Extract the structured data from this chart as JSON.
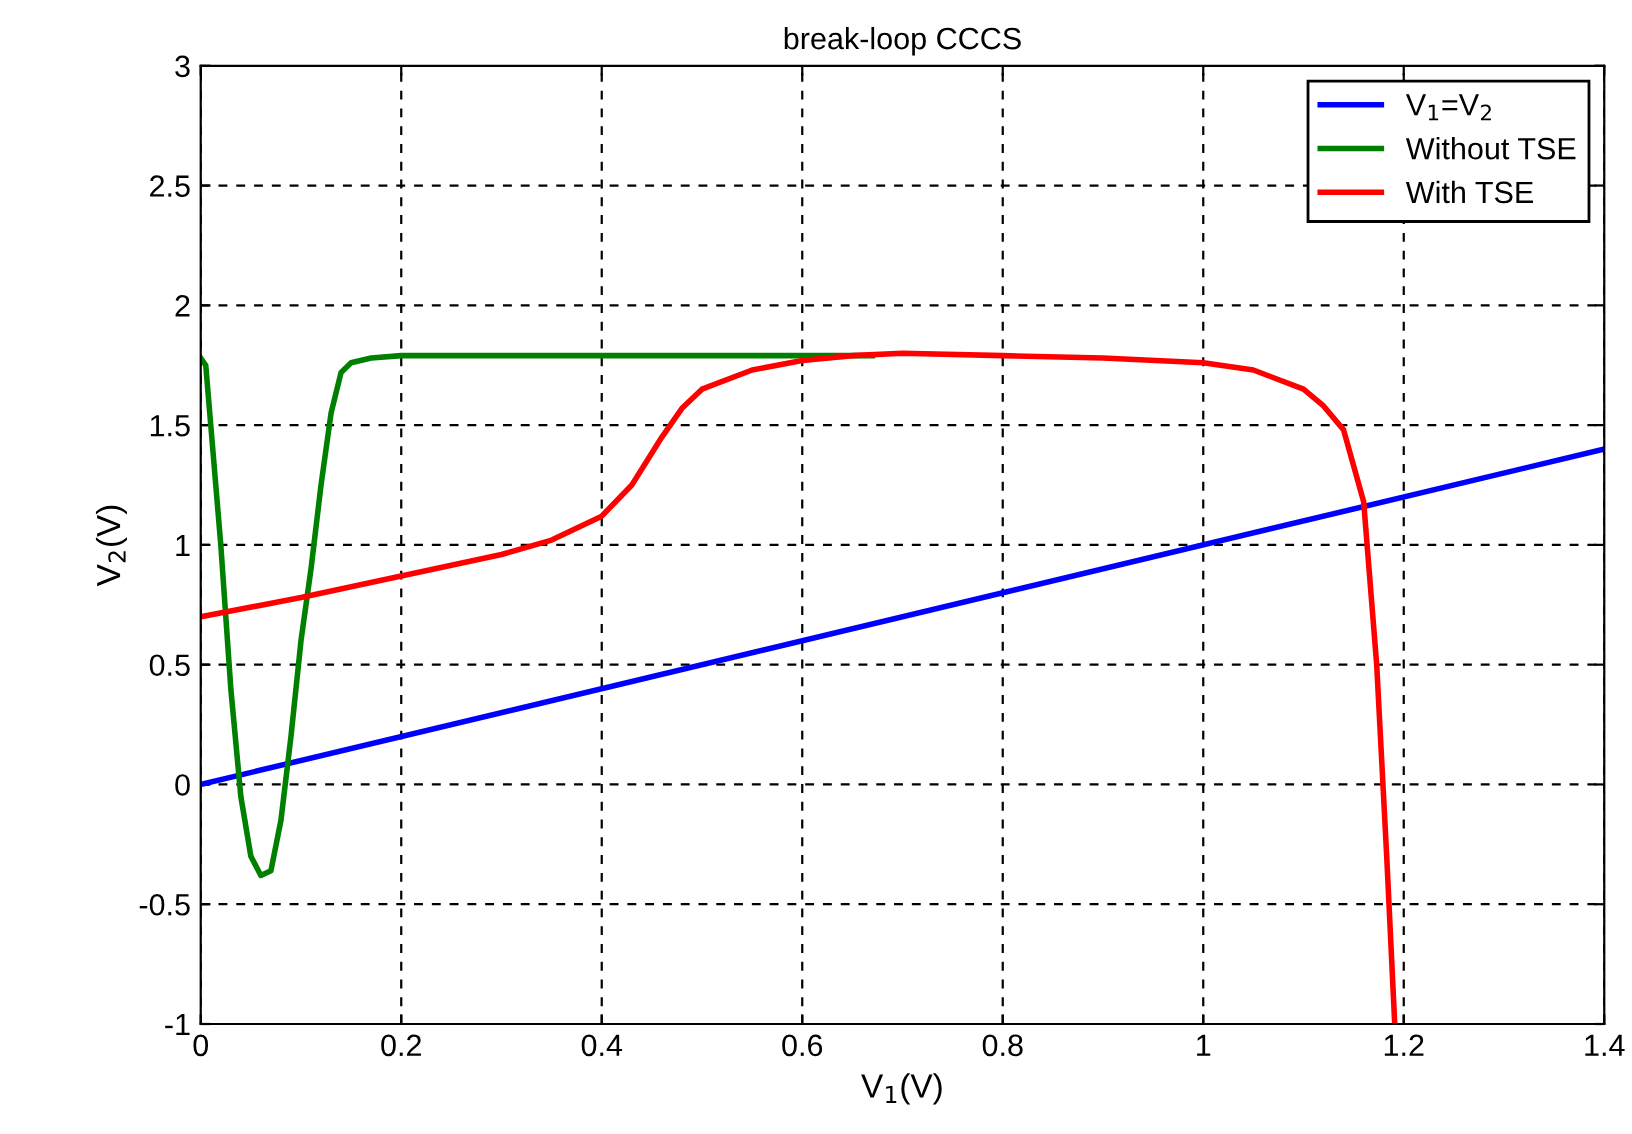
{
  "chart_data": {
    "type": "line",
    "title": "break-loop CCCS",
    "xlabel": "V$_{1}$(V)",
    "ylabel": "V$_{2}$(V)",
    "xlim": [
      0,
      1.4
    ],
    "ylim": [
      -1,
      3
    ],
    "xticks": [
      0,
      0.2,
      0.4,
      0.6,
      0.8,
      1,
      1.2,
      1.4
    ],
    "yticks": [
      -1,
      -0.5,
      0,
      0.5,
      1,
      1.5,
      2,
      2.5,
      3
    ],
    "grid": true,
    "legend": "top right",
    "line_style": "solid",
    "marker": "none",
    "series": [
      {
        "name": "V$_{1}$=V$_{2}$",
        "color": "#0000ff",
        "x": [
          0,
          1.4
        ],
        "values": [
          0,
          1.4
        ]
      },
      {
        "name": "Without TSE",
        "color": "#008000",
        "x": [
          0,
          0.005,
          0.01,
          0.02,
          0.03,
          0.04,
          0.05,
          0.06,
          0.07,
          0.08,
          0.09,
          0.1,
          0.11,
          0.12,
          0.13,
          0.14,
          0.15,
          0.17,
          0.2,
          0.4,
          0.67
        ],
        "values": [
          1.78,
          1.75,
          1.5,
          1.0,
          0.4,
          -0.05,
          -0.3,
          -0.38,
          -0.36,
          -0.15,
          0.2,
          0.6,
          0.9,
          1.25,
          1.55,
          1.72,
          1.76,
          1.78,
          1.79,
          1.79,
          1.79
        ]
      },
      {
        "name": "With TSE",
        "color": "#ff0000",
        "x": [
          0,
          0.1,
          0.2,
          0.3,
          0.35,
          0.4,
          0.43,
          0.46,
          0.48,
          0.5,
          0.55,
          0.6,
          0.65,
          0.7,
          0.8,
          0.9,
          1.0,
          1.05,
          1.1,
          1.12,
          1.14,
          1.16,
          1.173,
          1.183,
          1.191
        ],
        "values": [
          0.7,
          0.78,
          0.87,
          0.96,
          1.02,
          1.12,
          1.25,
          1.45,
          1.57,
          1.65,
          1.73,
          1.77,
          1.79,
          1.8,
          1.79,
          1.78,
          1.76,
          1.73,
          1.65,
          1.58,
          1.48,
          1.18,
          0.5,
          -0.3,
          -1.0
        ]
      }
    ]
  }
}
